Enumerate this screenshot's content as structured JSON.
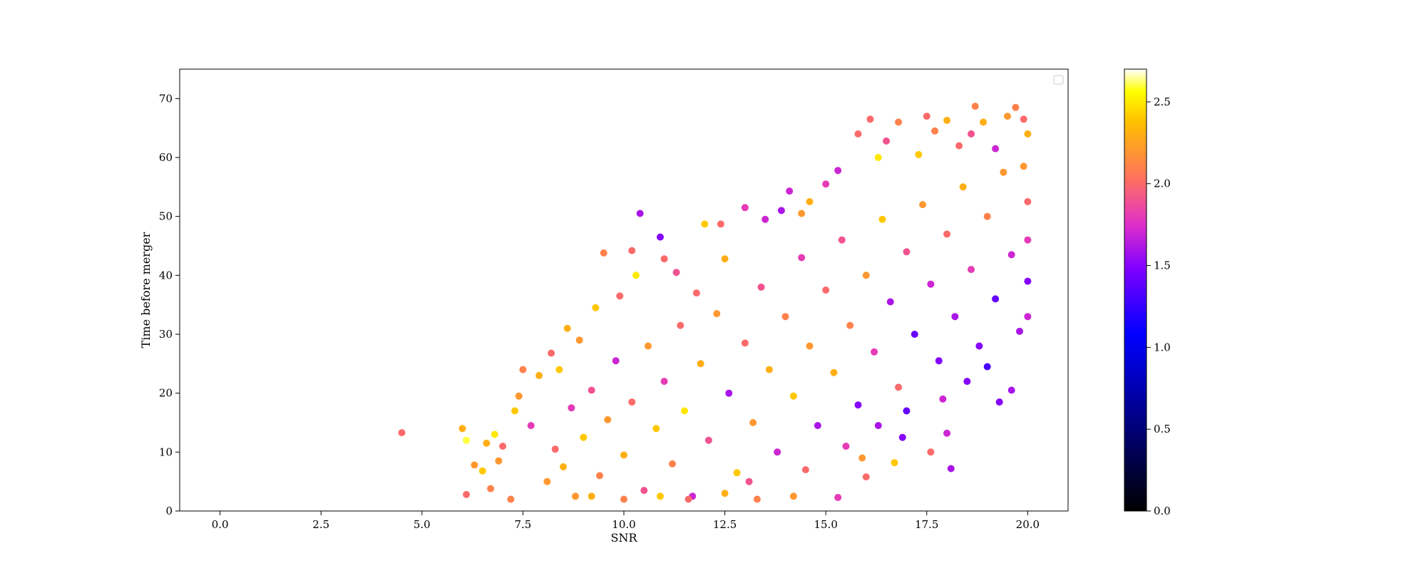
{
  "chart_data": {
    "type": "scatter",
    "title": "",
    "xlabel": "SNR",
    "ylabel": "Time before merger",
    "xlim": [
      -1.0,
      21.0
    ],
    "ylim": [
      0,
      75
    ],
    "xticks": [
      0.0,
      2.5,
      5.0,
      7.5,
      10.0,
      12.5,
      15.0,
      17.5,
      20.0
    ],
    "xtick_labels": [
      "0.0",
      "2.5",
      "5.0",
      "7.5",
      "10.0",
      "12.5",
      "15.0",
      "17.5",
      "20.0"
    ],
    "yticks": [
      0,
      10,
      20,
      30,
      40,
      50,
      60,
      70
    ],
    "ytick_labels": [
      "0",
      "10",
      "20",
      "30",
      "40",
      "50",
      "60",
      "70"
    ],
    "grid": false,
    "legend": {
      "placement": "top-right",
      "entries": []
    },
    "colorbar": {
      "colormap": "gnuplot2",
      "range": [
        0.0,
        2.7
      ],
      "ticks": [
        0.0,
        0.5,
        1.0,
        1.5,
        2.0,
        2.5
      ],
      "tick_labels": [
        "0.0",
        "0.5",
        "1.0",
        "1.5",
        "2.0",
        "2.5"
      ]
    },
    "series": [
      {
        "points": [
          [
            4.5,
            13.3,
            2.0
          ],
          [
            6.0,
            14.0,
            2.3
          ],
          [
            6.1,
            12.0,
            2.6
          ],
          [
            6.1,
            2.8,
            2.0
          ],
          [
            6.3,
            7.8,
            2.2
          ],
          [
            6.5,
            6.8,
            2.4
          ],
          [
            6.6,
            11.5,
            2.3
          ],
          [
            6.7,
            3.8,
            2.1
          ],
          [
            6.8,
            13.0,
            2.5
          ],
          [
            6.9,
            8.5,
            2.2
          ],
          [
            7.0,
            11.0,
            2.0
          ],
          [
            7.2,
            2.0,
            2.1
          ],
          [
            7.3,
            17.0,
            2.4
          ],
          [
            7.4,
            19.5,
            2.2
          ],
          [
            7.5,
            24.0,
            2.1
          ],
          [
            7.7,
            14.5,
            1.8
          ],
          [
            7.9,
            23.0,
            2.3
          ],
          [
            8.2,
            26.8,
            2.0
          ],
          [
            8.4,
            24.0,
            2.4
          ],
          [
            8.6,
            31.0,
            2.3
          ],
          [
            8.9,
            29.0,
            2.2
          ],
          [
            9.3,
            34.5,
            2.4
          ],
          [
            9.5,
            43.8,
            2.1
          ],
          [
            9.9,
            36.5,
            2.0
          ],
          [
            10.2,
            44.2,
            2.0
          ],
          [
            10.3,
            40.0,
            2.5
          ],
          [
            10.4,
            50.5,
            1.6
          ],
          [
            10.9,
            46.5,
            1.5
          ],
          [
            11.0,
            42.8,
            2.0
          ],
          [
            11.3,
            40.5,
            1.9
          ],
          [
            11.8,
            37.0,
            2.0
          ],
          [
            12.0,
            48.7,
            2.4
          ],
          [
            12.4,
            48.7,
            2.0
          ],
          [
            12.5,
            42.8,
            2.3
          ],
          [
            13.0,
            51.5,
            1.8
          ],
          [
            13.5,
            49.5,
            1.7
          ],
          [
            13.9,
            51.0,
            1.6
          ],
          [
            14.1,
            54.3,
            1.7
          ],
          [
            14.4,
            50.5,
            2.2
          ],
          [
            14.6,
            52.5,
            2.3
          ],
          [
            15.0,
            55.5,
            1.8
          ],
          [
            15.3,
            57.8,
            1.7
          ],
          [
            15.8,
            64.0,
            2.0
          ],
          [
            16.1,
            66.5,
            2.0
          ],
          [
            16.3,
            60.0,
            2.5
          ],
          [
            16.5,
            62.8,
            1.9
          ],
          [
            16.8,
            66.0,
            2.1
          ],
          [
            17.3,
            60.5,
            2.4
          ],
          [
            17.5,
            67.0,
            2.0
          ],
          [
            17.7,
            64.5,
            2.1
          ],
          [
            18.0,
            66.3,
            2.3
          ],
          [
            18.3,
            62.0,
            2.0
          ],
          [
            18.6,
            64.0,
            1.9
          ],
          [
            18.7,
            68.7,
            2.1
          ],
          [
            18.9,
            66.0,
            2.3
          ],
          [
            19.2,
            61.5,
            1.7
          ],
          [
            19.5,
            67.0,
            2.2
          ],
          [
            19.7,
            68.5,
            2.1
          ],
          [
            19.9,
            66.5,
            2.0
          ],
          [
            20.0,
            64.0,
            2.3
          ],
          [
            8.1,
            5.0,
            2.2
          ],
          [
            8.3,
            10.5,
            2.0
          ],
          [
            8.5,
            7.5,
            2.3
          ],
          [
            8.7,
            17.5,
            1.8
          ],
          [
            8.8,
            2.5,
            2.2
          ],
          [
            9.0,
            12.5,
            2.4
          ],
          [
            9.2,
            20.5,
            1.9
          ],
          [
            9.4,
            6.0,
            2.1
          ],
          [
            9.6,
            15.5,
            2.2
          ],
          [
            9.8,
            25.5,
            1.7
          ],
          [
            10.0,
            9.5,
            2.3
          ],
          [
            10.2,
            18.5,
            2.0
          ],
          [
            10.5,
            3.5,
            1.9
          ],
          [
            10.6,
            28.0,
            2.2
          ],
          [
            10.8,
            14.0,
            2.4
          ],
          [
            11.0,
            22.0,
            1.8
          ],
          [
            11.2,
            8.0,
            2.1
          ],
          [
            11.4,
            31.5,
            2.0
          ],
          [
            11.5,
            17.0,
            2.5
          ],
          [
            11.7,
            2.5,
            1.7
          ],
          [
            11.9,
            25.0,
            2.3
          ],
          [
            12.1,
            12.0,
            1.9
          ],
          [
            12.3,
            33.5,
            2.2
          ],
          [
            12.6,
            20.0,
            1.6
          ],
          [
            12.8,
            6.5,
            2.4
          ],
          [
            13.0,
            28.5,
            2.0
          ],
          [
            13.2,
            15.0,
            2.2
          ],
          [
            13.4,
            38.0,
            1.9
          ],
          [
            13.6,
            24.0,
            2.3
          ],
          [
            13.8,
            10.0,
            1.7
          ],
          [
            14.0,
            33.0,
            2.1
          ],
          [
            14.2,
            19.5,
            2.4
          ],
          [
            14.4,
            43.0,
            1.8
          ],
          [
            14.6,
            28.0,
            2.2
          ],
          [
            14.8,
            14.5,
            1.6
          ],
          [
            15.0,
            37.5,
            2.0
          ],
          [
            15.2,
            23.5,
            2.3
          ],
          [
            15.4,
            46.0,
            1.9
          ],
          [
            15.6,
            31.5,
            2.1
          ],
          [
            15.8,
            18.0,
            1.5
          ],
          [
            16.0,
            40.0,
            2.2
          ],
          [
            16.2,
            27.0,
            1.8
          ],
          [
            16.4,
            49.5,
            2.4
          ],
          [
            16.6,
            35.5,
            1.6
          ],
          [
            16.8,
            21.0,
            2.0
          ],
          [
            17.0,
            44.0,
            1.9
          ],
          [
            17.2,
            30.0,
            1.4
          ],
          [
            17.4,
            52.0,
            2.2
          ],
          [
            17.6,
            38.5,
            1.7
          ],
          [
            17.8,
            25.5,
            1.5
          ],
          [
            18.0,
            47.0,
            2.0
          ],
          [
            18.2,
            33.0,
            1.6
          ],
          [
            18.4,
            55.0,
            2.3
          ],
          [
            18.6,
            41.0,
            1.8
          ],
          [
            18.8,
            28.0,
            1.5
          ],
          [
            19.0,
            50.0,
            2.1
          ],
          [
            19.2,
            36.0,
            1.4
          ],
          [
            19.4,
            57.5,
            2.2
          ],
          [
            19.6,
            43.5,
            1.7
          ],
          [
            19.8,
            30.5,
            1.6
          ],
          [
            20.0,
            52.5,
            2.0
          ],
          [
            20.0,
            39.0,
            1.5
          ],
          [
            20.0,
            46.0,
            1.8
          ],
          [
            20.0,
            33.0,
            1.7
          ],
          [
            19.9,
            58.5,
            2.2
          ],
          [
            19.3,
            18.5,
            1.5
          ],
          [
            19.6,
            20.5,
            1.6
          ],
          [
            18.1,
            7.2,
            1.6
          ],
          [
            18.0,
            13.2,
            1.7
          ],
          [
            17.6,
            10.0,
            2.0
          ],
          [
            16.7,
            8.2,
            2.4
          ],
          [
            16.0,
            5.8,
            2.0
          ],
          [
            15.3,
            2.3,
            1.8
          ],
          [
            14.2,
            2.5,
            2.2
          ],
          [
            13.3,
            2.0,
            2.1
          ],
          [
            12.5,
            3.0,
            2.3
          ],
          [
            11.6,
            2.0,
            2.0
          ],
          [
            10.9,
            2.5,
            2.4
          ],
          [
            10.0,
            2.0,
            2.1
          ],
          [
            9.2,
            2.5,
            2.3
          ],
          [
            13.1,
            5.0,
            1.9
          ],
          [
            14.5,
            7.0,
            2.0
          ],
          [
            15.5,
            11.0,
            1.8
          ],
          [
            16.3,
            14.5,
            1.6
          ],
          [
            17.0,
            17.0,
            1.4
          ],
          [
            18.5,
            22.0,
            1.5
          ],
          [
            19.0,
            24.5,
            1.3
          ],
          [
            17.9,
            19.0,
            1.7
          ],
          [
            16.9,
            12.5,
            1.5
          ],
          [
            15.9,
            9.0,
            2.2
          ]
        ]
      }
    ]
  }
}
